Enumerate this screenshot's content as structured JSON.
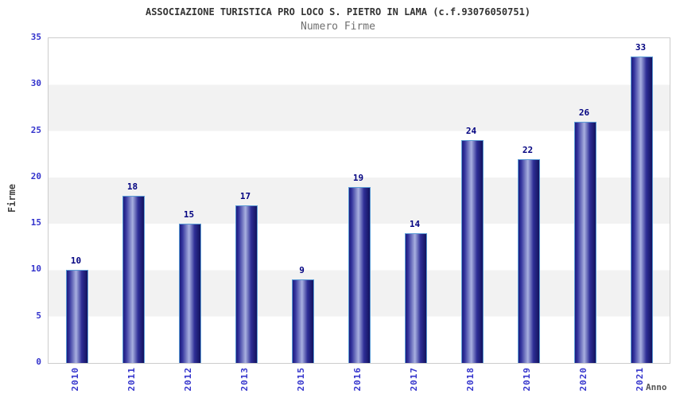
{
  "chart_data": {
    "type": "bar",
    "title": "ASSOCIAZIONE TURISTICA PRO LOCO S. PIETRO IN LAMA (c.f.93076050751)",
    "subtitle": "Numero Firme",
    "xlabel": "Anno",
    "ylabel": "Firme",
    "categories": [
      "2010",
      "2011",
      "2012",
      "2013",
      "2015",
      "2016",
      "2017",
      "2018",
      "2019",
      "2020",
      "2021"
    ],
    "values": [
      10,
      18,
      15,
      17,
      9,
      19,
      14,
      24,
      22,
      26,
      33
    ],
    "ylim": [
      0,
      35
    ],
    "yticks": [
      0,
      5,
      10,
      15,
      20,
      25,
      30,
      35
    ],
    "grid": "alternating-horizontal-bands",
    "legend": "none",
    "bar_labels_shown": true,
    "x_tick_rotation_degrees": 90,
    "colors": {
      "title": "#333333",
      "subtitle": "#707070",
      "axis_label": "#444444",
      "tick_label": "#3333cc",
      "value_label": "#000080",
      "band_light": "#ffffff",
      "band_gray": "#f2f2f2",
      "plot_border": "#cccccc",
      "bar_border": "#5b9bd5",
      "bar_gradient": [
        "#1c1c7e",
        "#32329c",
        "#a8b0e0",
        "#2e2e96",
        "#12125e"
      ]
    }
  }
}
